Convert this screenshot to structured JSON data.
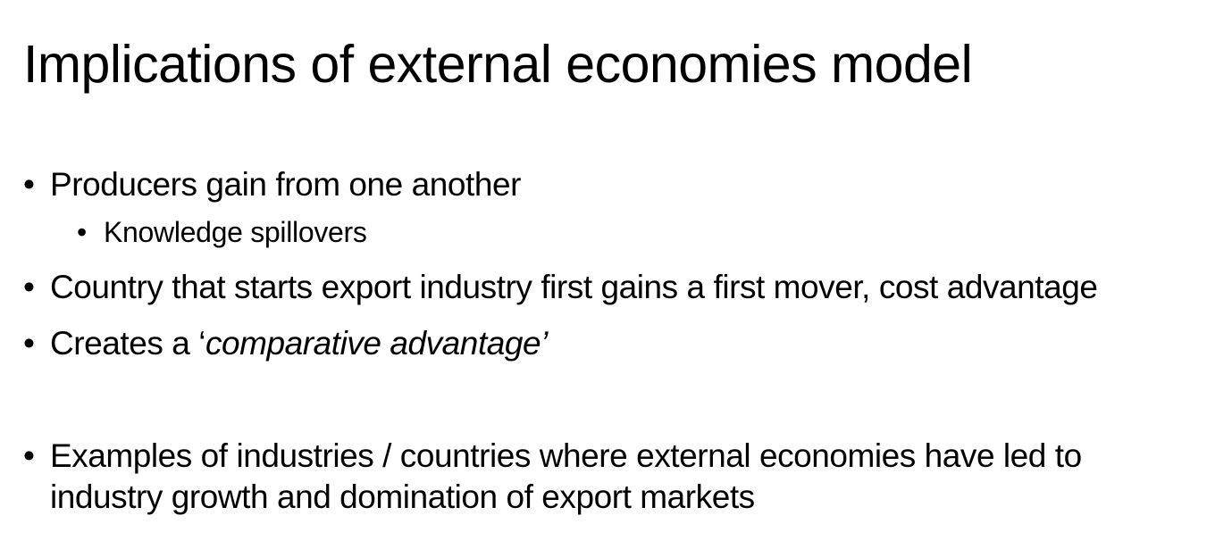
{
  "slide": {
    "title": "Implications of external economies model",
    "bullet_char": "•",
    "bullets": [
      {
        "text": "Producers gain from one another",
        "subbullets": [
          {
            "text": "Knowledge spillovers"
          }
        ]
      },
      {
        "text": "Country that starts export industry first gains a first mover, cost advantage"
      },
      {
        "prefix": "Creates a ‘",
        "emphasis": "comparative advantage’"
      },
      {
        "line1": "Examples of industries / countries where external economies have led to",
        "line2": "industry growth and domination of export markets"
      }
    ]
  }
}
